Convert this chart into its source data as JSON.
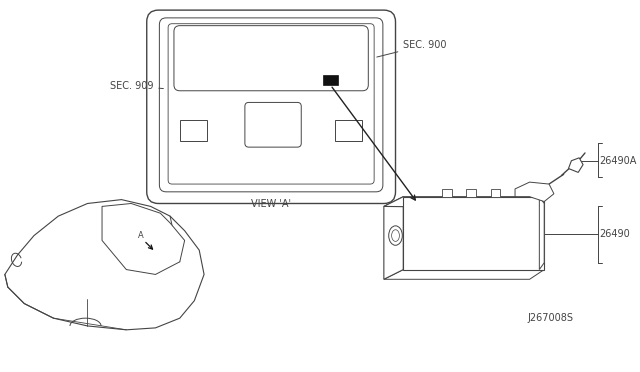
{
  "bg_color": "#ffffff",
  "line_color": "#444444",
  "labels": {
    "sec900": "SEC. 900",
    "sec909": "SEC. 909",
    "view_a": "VIEW 'A'",
    "part_26490A": "26490A",
    "part_26490": "26490",
    "diagram_id": "J267008S"
  },
  "font_size": 7,
  "font_family": "DejaVu Sans"
}
